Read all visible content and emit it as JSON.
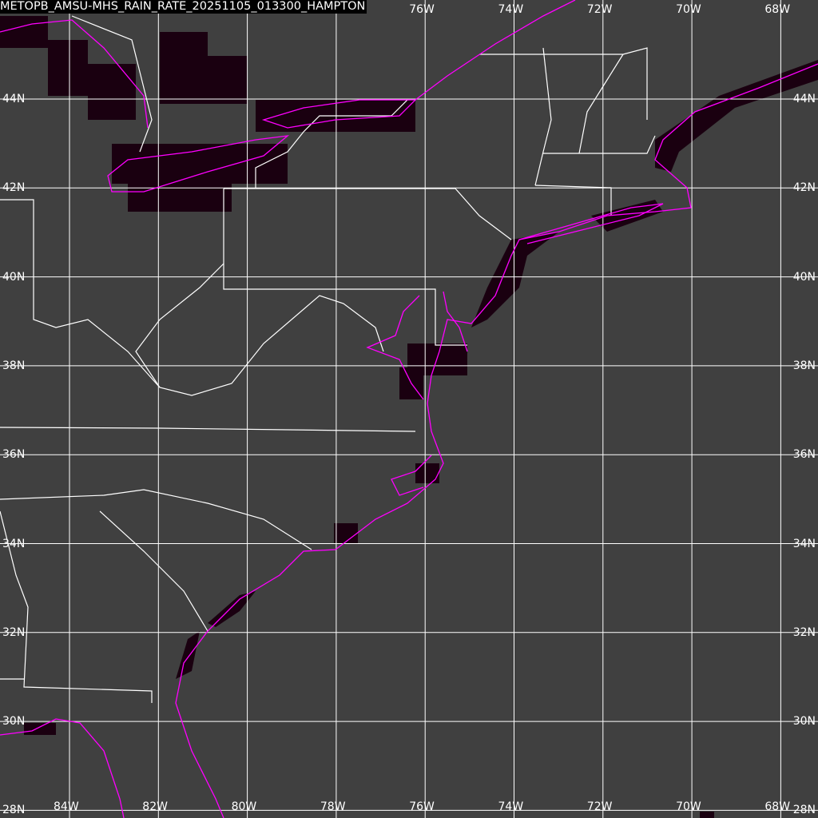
{
  "title": "METOPB_AMSU-MHS_RAIN_RATE_20251105_013300_HAMPTON",
  "longitudes": [
    "84W",
    "82W",
    "80W",
    "78W",
    "76W",
    "74W",
    "72W",
    "70W",
    "68W"
  ],
  "latitudes": [
    "44N",
    "42N",
    "40N",
    "38N",
    "36N",
    "34N",
    "32N",
    "30N",
    "28N"
  ],
  "top_longitudes": [
    "76W",
    "74W",
    "72W",
    "70W",
    "68W"
  ],
  "colors": {
    "background": "#404040",
    "coastline": "#ff00ff",
    "borders": "#ffffff",
    "grid": "#ffffff",
    "rain": "#1a0010"
  }
}
